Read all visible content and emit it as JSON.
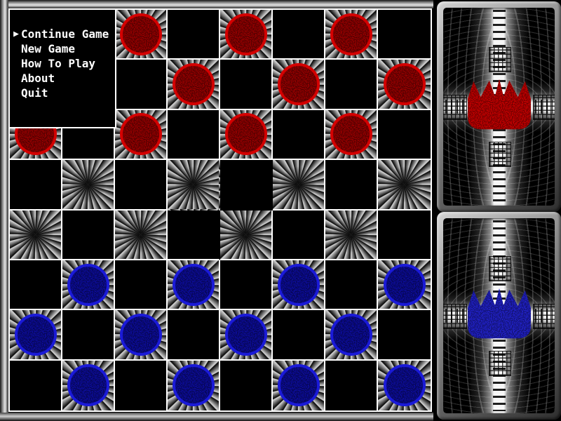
{
  "menu": {
    "cursor_icon": "▶",
    "items": [
      {
        "label": "Continue Game",
        "selected": true
      },
      {
        "label": "New Game",
        "selected": false
      },
      {
        "label": "How To Play",
        "selected": false
      },
      {
        "label": "About",
        "selected": false
      },
      {
        "label": "Quit",
        "selected": false
      }
    ]
  },
  "board": {
    "rows": 8,
    "cols": 8,
    "grid": [
      "..r.r.r.",
      "...r.r.r",
      "r.r.r.r.",
      "........",
      "........",
      ".b.b.b.b",
      "b.b.b.b.",
      ".b.b.b.b"
    ],
    "legend": {
      "r": "red piece",
      "b": "blue piece",
      ".": "empty square"
    },
    "pattern_rule": "squares with (row+col) even show gray starburst pattern; others are solid black",
    "visible_piece_counts": {
      "red": 10,
      "blue": 12
    },
    "menu_covers": {
      "rows": [
        0,
        1
      ],
      "cols": [
        0,
        1
      ]
    },
    "missing_gridlines": [
      {
        "row": 3,
        "col": 3,
        "sides": [
          "right",
          "bottom"
        ]
      },
      {
        "row": 3,
        "col": 4,
        "sides": [
          "right",
          "bottom"
        ]
      },
      {
        "row": 4,
        "col": 3,
        "sides": [
          "right"
        ]
      }
    ]
  },
  "panels": {
    "top": {
      "icon": "red-crown-icon",
      "represents": "red player"
    },
    "bottom": {
      "icon": "blue-crown-icon",
      "represents": "blue player"
    }
  },
  "colors": {
    "red_piece_rim": "#d40000",
    "red_piece_body": "#9c0000",
    "blue_piece_rim": "#1a1ad8",
    "blue_piece_body": "#0d0da0",
    "red_crown": "#c80000",
    "blue_crown": "#2222cc",
    "grid_line": "#ffffff",
    "square_black": "#000000",
    "menu_text": "#ffffff",
    "frame_gray": "#9c9c9c"
  }
}
